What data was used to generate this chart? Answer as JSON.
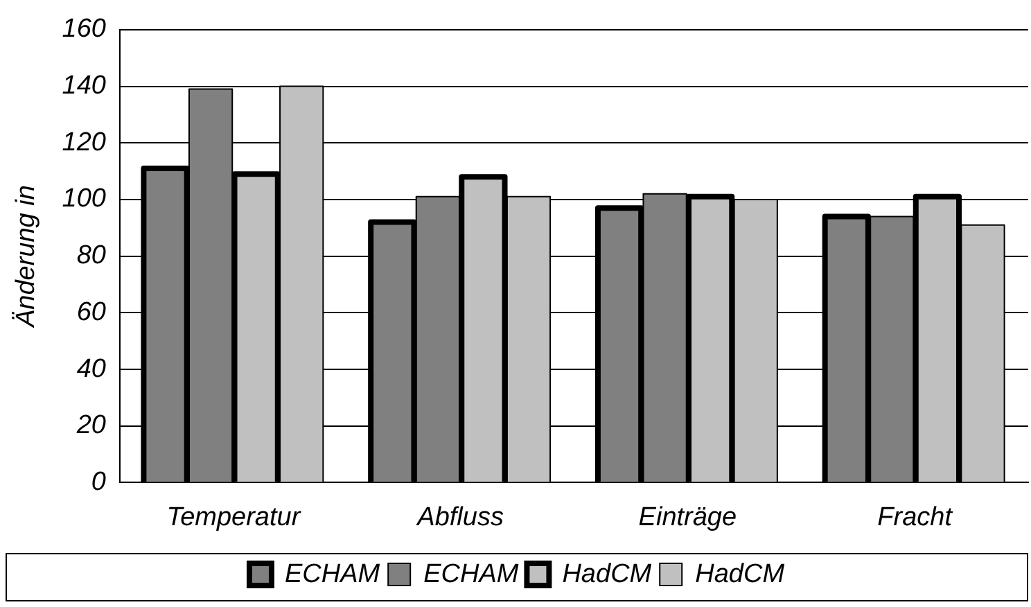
{
  "chart_data": {
    "type": "bar",
    "ylabel": "Änderung in",
    "categories": [
      "Temperatur",
      "Abfluss",
      "Einträge",
      "Fracht"
    ],
    "series": [
      {
        "name": "ECHAM",
        "color": "#808080",
        "values": [
          111,
          92,
          97,
          94
        ]
      },
      {
        "name": "ECHAM",
        "color": "#808080",
        "values": [
          139,
          101,
          102,
          94
        ]
      },
      {
        "name": "HadCM",
        "color": "#c0c0c0",
        "values": [
          109,
          108,
          101,
          101
        ]
      },
      {
        "name": "HadCM",
        "color": "#c0c0c0",
        "values": [
          140,
          101,
          100,
          91
        ]
      }
    ],
    "ylim": [
      0,
      160
    ],
    "yticks": [
      0,
      20,
      40,
      60,
      80,
      100,
      120,
      140,
      160
    ],
    "grid": "y",
    "legend": "bottom"
  }
}
